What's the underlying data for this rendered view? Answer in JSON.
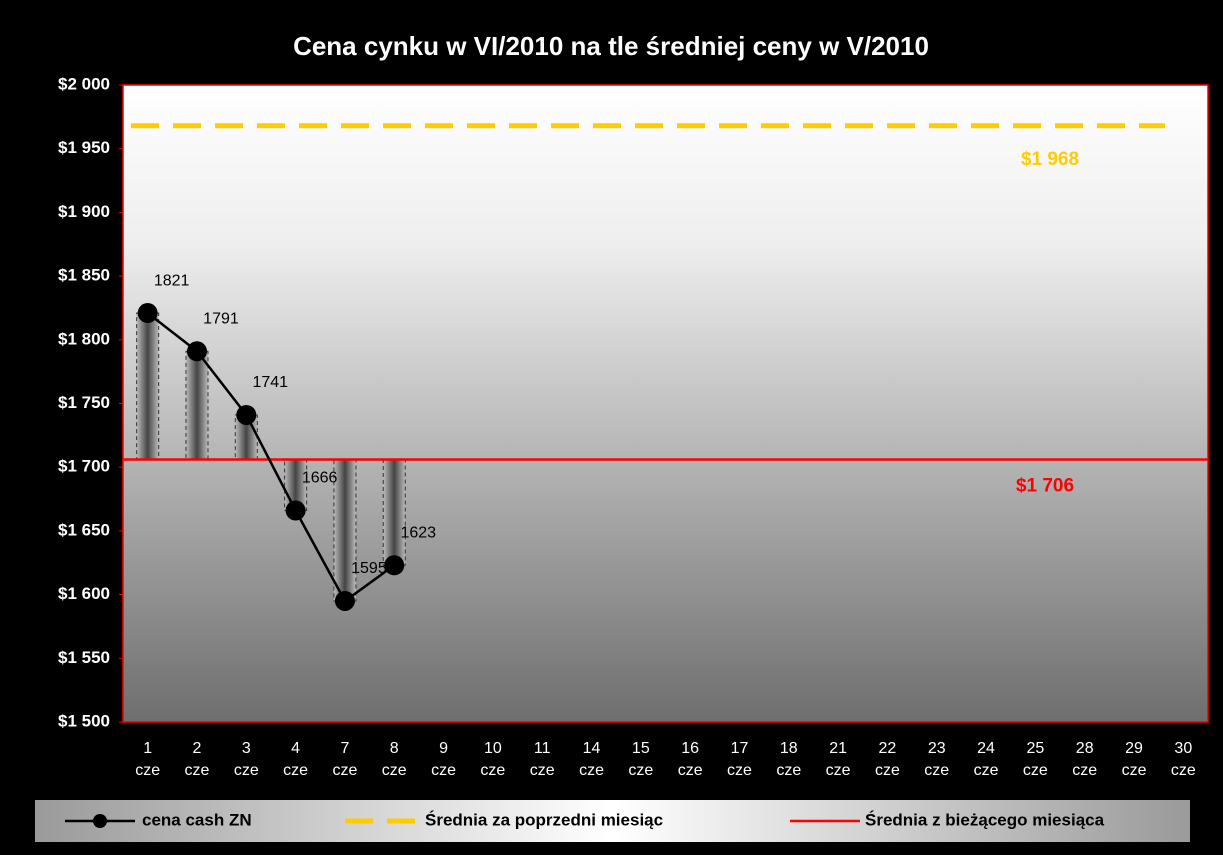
{
  "chart_data": {
    "type": "line",
    "title": "Cena cynku w VI/2010 na tle średniej ceny w V/2010",
    "categories": [
      "1 cze",
      "2 cze",
      "3 cze",
      "4 cze",
      "7 cze",
      "8 cze",
      "9 cze",
      "10 cze",
      "11 cze",
      "14 cze",
      "15 cze",
      "16 cze",
      "17 cze",
      "18 cze",
      "21 cze",
      "22 cze",
      "23 cze",
      "24 cze",
      "25 cze",
      "28 cze",
      "29 cze",
      "30 cze"
    ],
    "series": [
      {
        "name": "cena cash ZN",
        "color": "#000000",
        "values": [
          1821,
          1791,
          1741,
          1666,
          1595,
          1623,
          null,
          null,
          null,
          null,
          null,
          null,
          null,
          null,
          null,
          null,
          null,
          null,
          null,
          null,
          null,
          null
        ]
      },
      {
        "name": "Średnia za poprzedni miesiąc",
        "color": "#ffcc00",
        "value": 1968,
        "value_label": "$1 968"
      },
      {
        "name": "Średnia z bieżącego miesiąca",
        "color": "#ff0000",
        "value": 1706,
        "value_label": "$1 706"
      }
    ],
    "ylim": [
      1500,
      2000
    ],
    "yticks": [
      {
        "value": 1500,
        "label": "$1 500"
      },
      {
        "value": 1550,
        "label": "$1 550"
      },
      {
        "value": 1600,
        "label": "$1 600"
      },
      {
        "value": 1650,
        "label": "$1 650"
      },
      {
        "value": 1700,
        "label": "$1 700"
      },
      {
        "value": 1750,
        "label": "$1 750"
      },
      {
        "value": 1800,
        "label": "$1 800"
      },
      {
        "value": 1850,
        "label": "$1 850"
      },
      {
        "value": 1900,
        "label": "$1 900"
      },
      {
        "value": 1950,
        "label": "$1 950"
      },
      {
        "value": 2000,
        "label": "$2 000"
      }
    ]
  }
}
